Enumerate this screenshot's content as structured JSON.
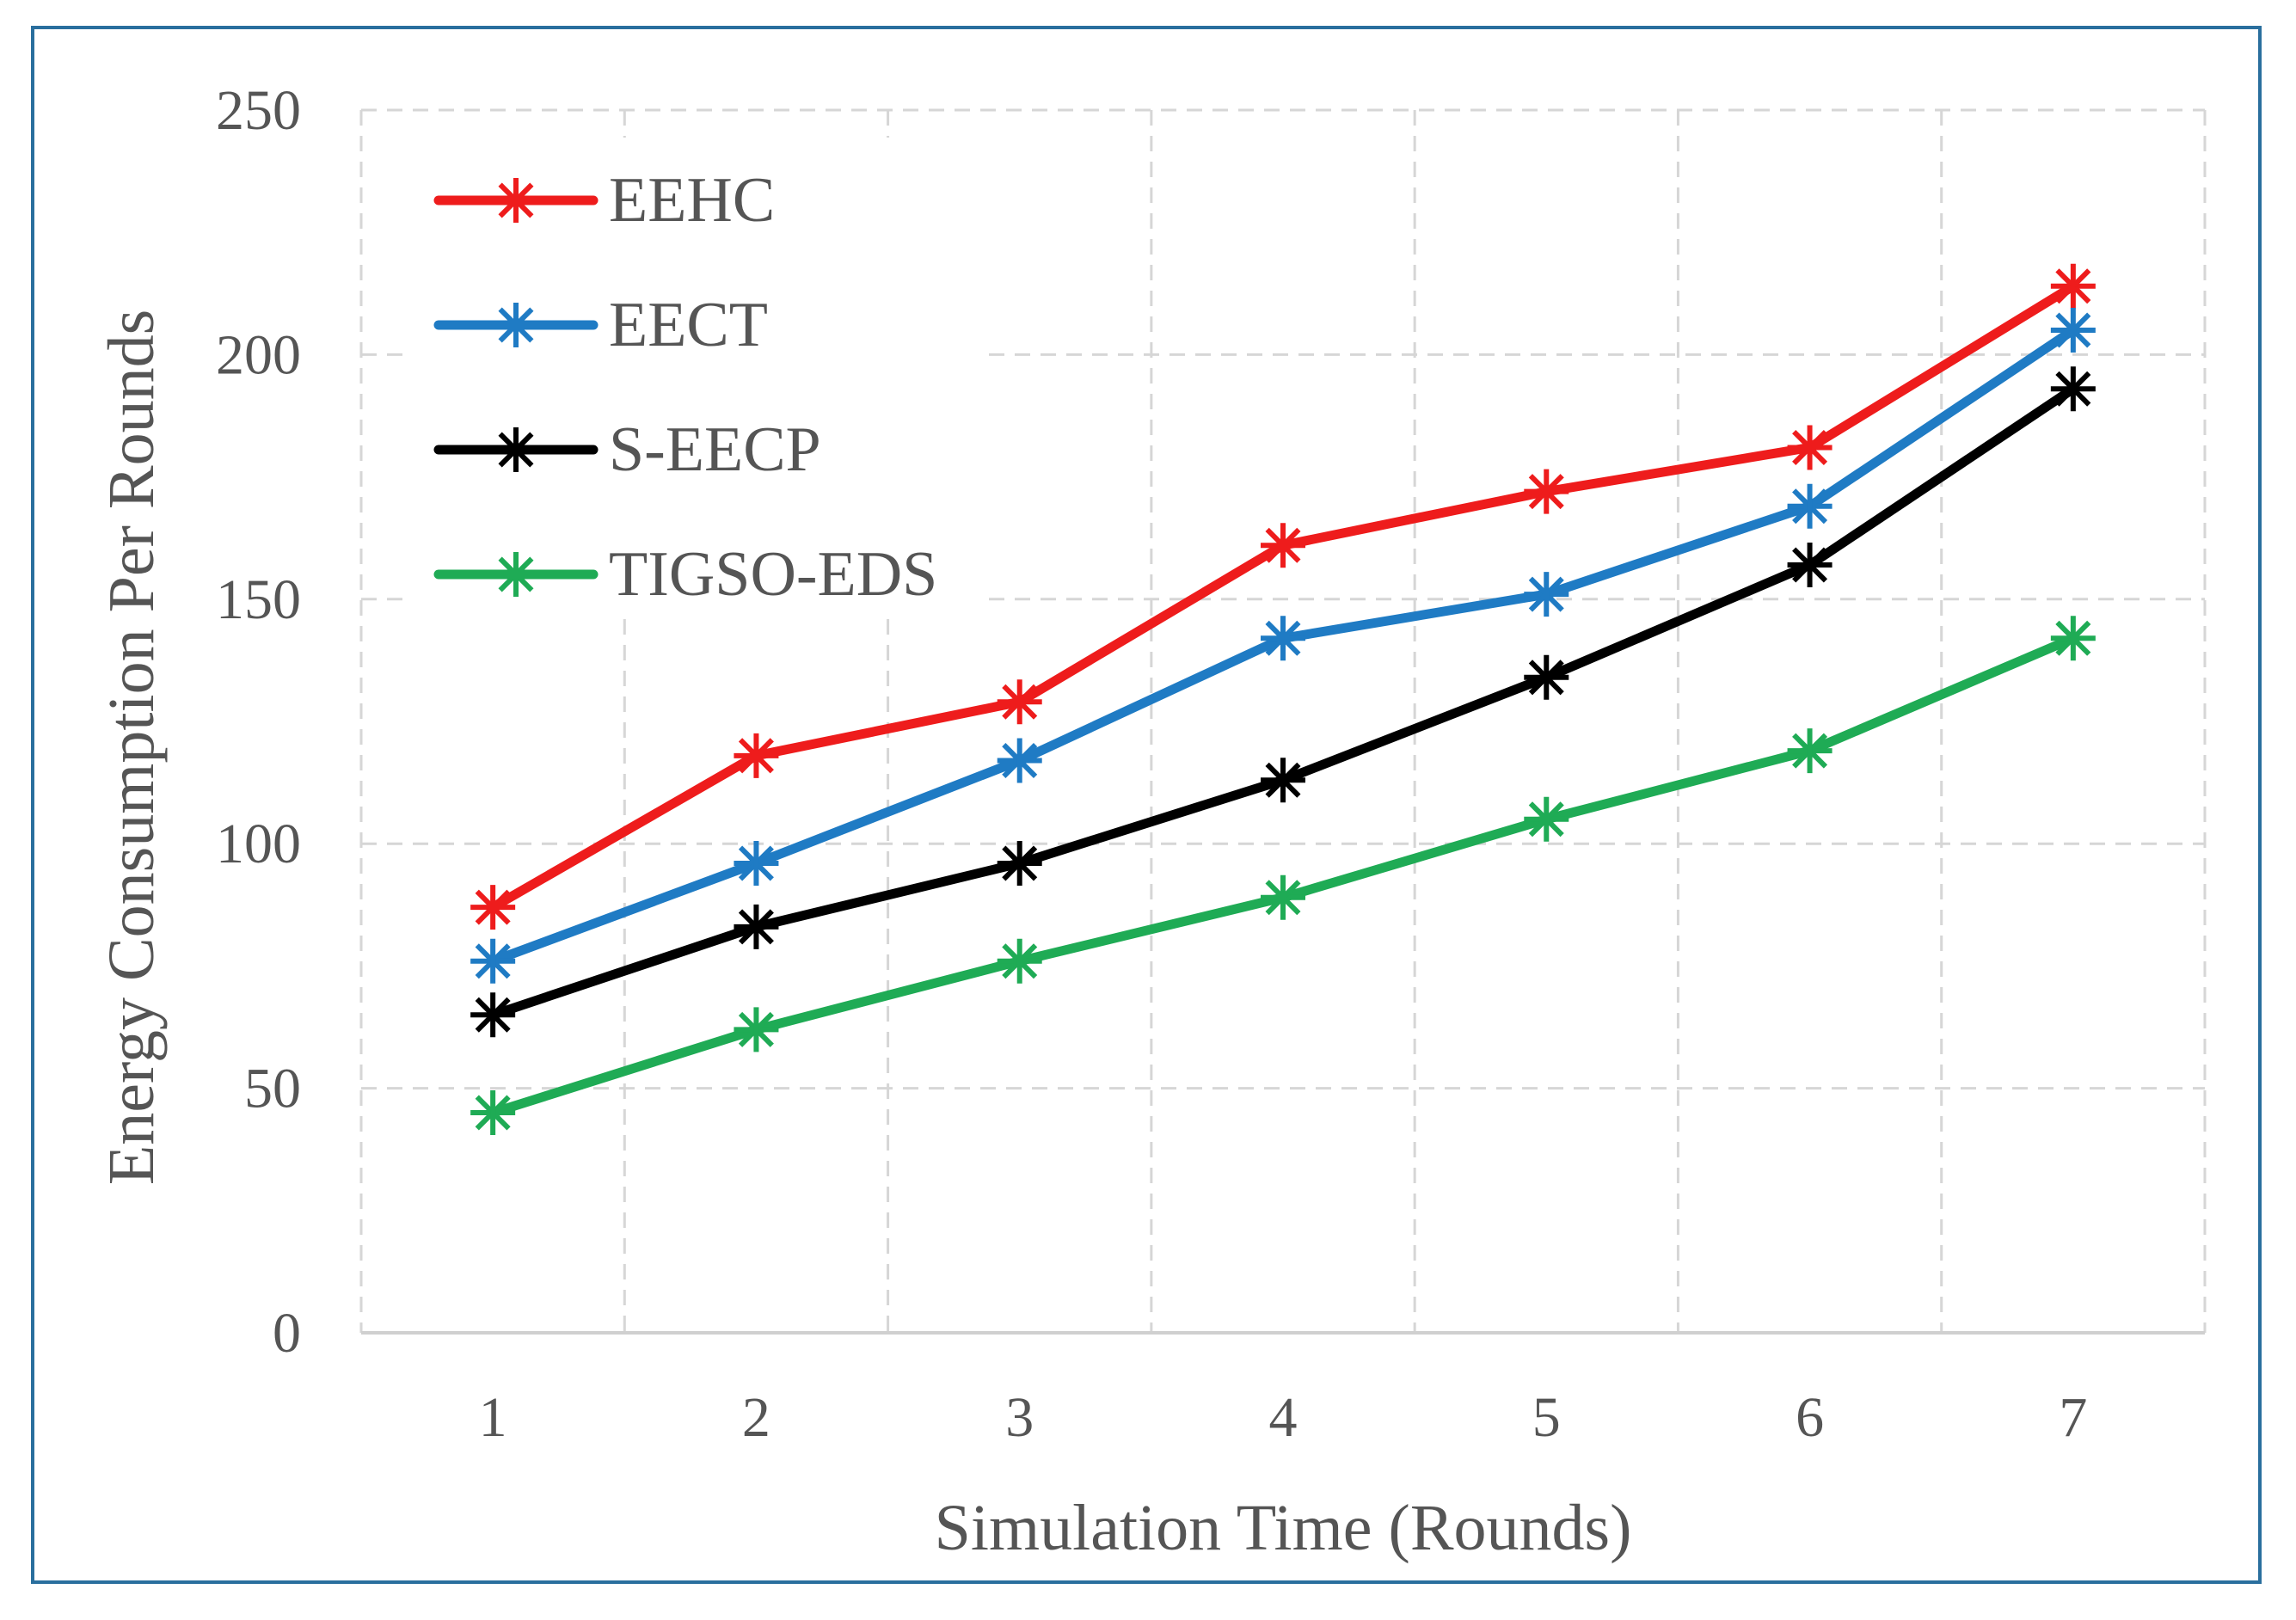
{
  "chart_data": {
    "type": "line",
    "title": "",
    "xlabel": "Simulation Time (Rounds)",
    "ylabel": "Energy Consumption Per Rounds",
    "x": [
      1,
      2,
      3,
      4,
      5,
      6,
      7
    ],
    "ylim": [
      0,
      250
    ],
    "yticks": [
      0,
      50,
      100,
      150,
      200,
      250
    ],
    "grid": true,
    "legend_position": "top-left",
    "marker": "asterisk",
    "series": [
      {
        "name": "EEHC",
        "color": "#ee1c1c",
        "values": [
          87,
          118,
          129,
          161,
          172,
          181,
          214
        ]
      },
      {
        "name": "EECT",
        "color": "#1f7bc4",
        "values": [
          76,
          96,
          117,
          142,
          151,
          169,
          205
        ]
      },
      {
        "name": "S-EECP",
        "color": "#000000",
        "values": [
          65,
          83,
          96,
          113,
          134,
          157,
          193
        ]
      },
      {
        "name": "TIGSO-EDS",
        "color": "#1fab55",
        "values": [
          45,
          62,
          76,
          89,
          105,
          119,
          142
        ]
      }
    ]
  }
}
